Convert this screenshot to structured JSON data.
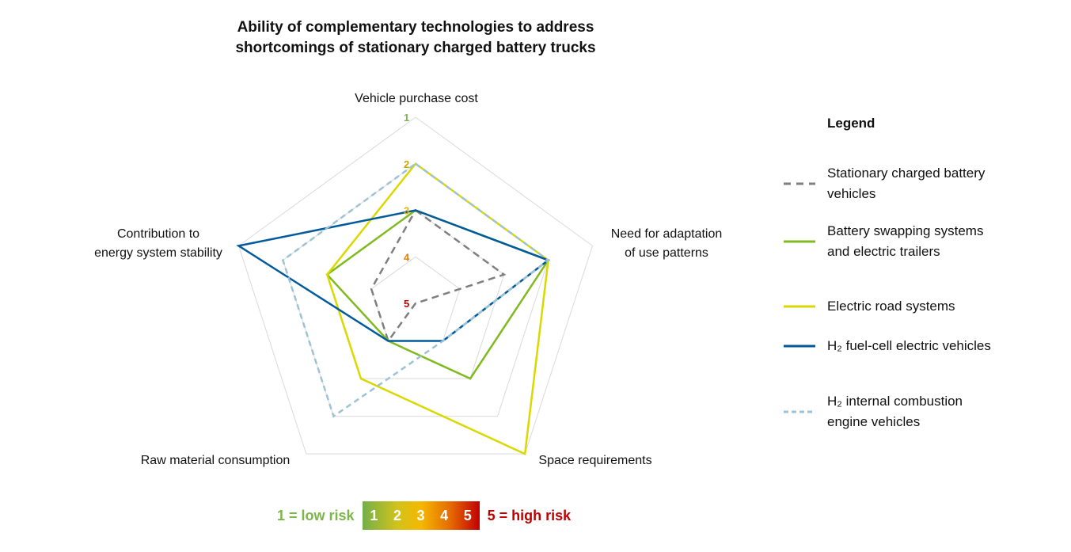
{
  "chart_data": {
    "type": "radar",
    "title": [
      "Ability of complementary technologies to address",
      "shortcomings of stationary charged battery trucks"
    ],
    "axes": [
      {
        "label": [
          "Vehicle purchase cost"
        ]
      },
      {
        "label": [
          "Need for adaptation",
          "of use patterns"
        ]
      },
      {
        "label": [
          "Space requirements"
        ]
      },
      {
        "label": [
          "Raw material consumption"
        ]
      },
      {
        "label": [
          "Contribution to",
          "energy system stability"
        ]
      }
    ],
    "scale": {
      "min": 1,
      "max": 5,
      "outer_value": 1,
      "center_value": 5
    },
    "ring_labels": [
      {
        "text": "1",
        "color": "#7ab648"
      },
      {
        "text": "2",
        "color": "#c8a800"
      },
      {
        "text": "3",
        "color": "#f2ae00"
      },
      {
        "text": "4",
        "color": "#e87e04"
      },
      {
        "text": "5",
        "color": "#c00000"
      }
    ],
    "series": [
      {
        "name": "Stationary charged battery vehicles",
        "values": [
          3,
          3,
          5,
          4,
          4
        ],
        "color": "#7f7f7f",
        "dash": "dashed"
      },
      {
        "name": "Battery swapping systems and electric trailers",
        "values": [
          3,
          2,
          3,
          4,
          3
        ],
        "color": "#7fba1e",
        "dash": "solid"
      },
      {
        "name": "Electric road systems",
        "values": [
          2,
          2,
          1,
          3,
          3
        ],
        "color": "#d9d900",
        "dash": "solid"
      },
      {
        "name": "H₂ fuel-cell electric vehicles",
        "values": [
          3,
          2,
          4,
          4,
          1
        ],
        "color": "#005a9c",
        "dash": "solid"
      },
      {
        "name": "H₂ internal combustion engine vehicles",
        "values": [
          2,
          2,
          4,
          2,
          2
        ],
        "color": "#9cc3d5",
        "dash": "dashed"
      }
    ],
    "legend": {
      "title": "Legend",
      "placement": "right"
    },
    "risk_scale": {
      "low_label": "1 = low risk",
      "high_label": "5 = high risk",
      "steps": [
        "1",
        "2",
        "3",
        "4",
        "5"
      ]
    }
  }
}
